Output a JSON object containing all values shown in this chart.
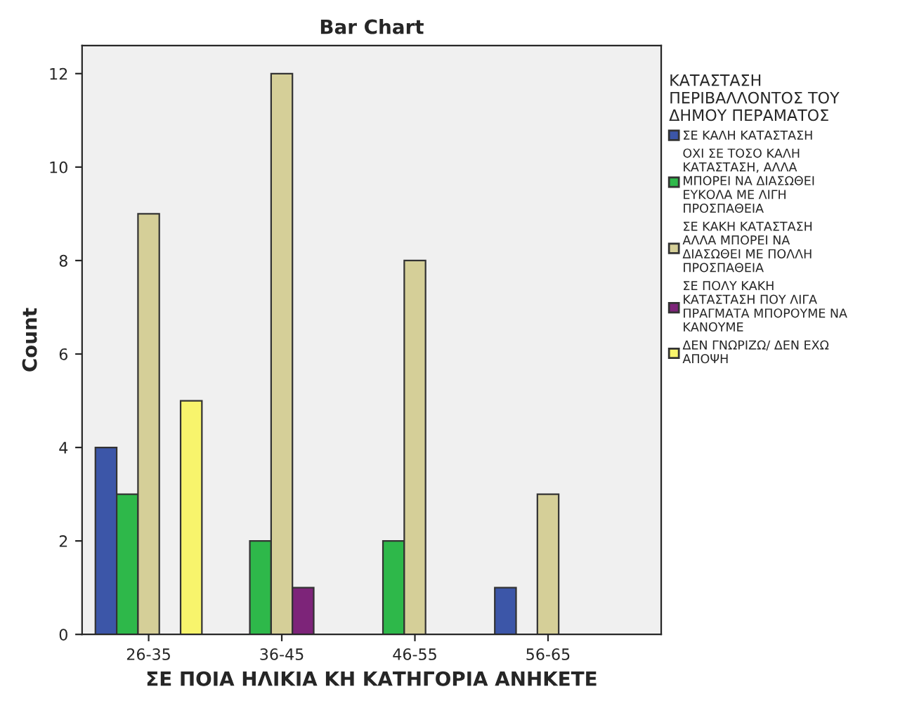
{
  "chart_data": {
    "type": "bar",
    "title": "Bar Chart",
    "xlabel": "ΣΕ ΠΟΙΑ ΗΛΙΚΙΑ ΚΗ ΚΑΤΗΓΟΡΙΑ ΑΝΗΚΕΤΕ",
    "ylabel": "Count",
    "legend_title": "ΚΑΤΑΣΤΑΣΗ\nΠΕΡΙΒΑΛΛΟΝΤΟΣ ΤΟΥ\nΔΗΜΟΥ ΠΕΡΑΜΑΤΟΣ",
    "categories": [
      "26-35",
      "36-45",
      "46-55",
      "56-65"
    ],
    "series": [
      {
        "name": "ΣΕ ΚΑΛΗ ΚΑΤΑΣΤΑΣΗ",
        "color": "#3c56a8",
        "values": [
          4,
          null,
          null,
          1
        ]
      },
      {
        "name": "ΟΧΙ ΣΕ ΤΟΣΟ ΚΑΛΗ\nΚΑΤΑΣΤΑΣΗ, ΑΛΛΑ\nΜΠΟΡΕΙ ΝΑ ΔΙΑΣΩΘΕΙ\nΕΥΚΟΛΑ ΜΕ ΛΙΓΗ\nΠΡΟΣΠΑΘΕΙΑ",
        "color": "#2eb84a",
        "values": [
          3,
          2,
          2,
          null
        ]
      },
      {
        "name": "ΣΕ ΚΑΚΗ ΚΑΤΑΣΤΑΣΗ\nΑΛΛΑ ΜΠΟΡΕΙ ΝΑ\nΔΙΑΣΩΘΕΙ ΜΕ ΠΟΛΛΗ\nΠΡΟΣΠΑΘΕΙΑ",
        "color": "#d5cf98",
        "values": [
          9,
          12,
          8,
          3
        ]
      },
      {
        "name": "ΣΕ ΠΟΛΥ ΚΑΚΗ\nΚΑΤΑΣΤΑΣΗ ΠΟΥ ΛΙΓΑ\nΠΡΑΓΜΑΤΑ ΜΠΟΡΟΥΜΕ ΝΑ\nΚΑΝΟΥΜΕ",
        "color": "#7d2479",
        "values": [
          null,
          1,
          null,
          null
        ]
      },
      {
        "name": "ΔΕΝ ΓΝΩΡΙΖΩ/ ΔΕΝ ΕΧΩ\nΑΠΟΨΗ",
        "color": "#f8f46c",
        "values": [
          5,
          null,
          null,
          null
        ]
      }
    ],
    "ylim": [
      0,
      12.6
    ],
    "yticks": [
      0,
      2,
      4,
      6,
      8,
      10,
      12
    ],
    "grid": false,
    "legend": "right"
  }
}
